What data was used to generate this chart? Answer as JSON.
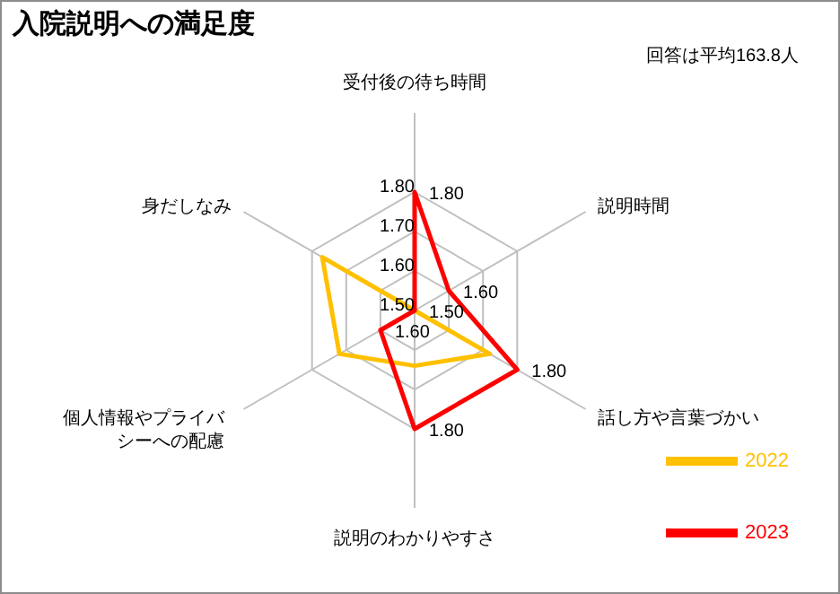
{
  "chart_data": {
    "type": "radar",
    "title": "入院説明への満足度",
    "annotations": [
      "回答は平均163.8人"
    ],
    "categories": [
      "受付後の待ち時間",
      "説明時間",
      "話し方や言葉づかい",
      "説明のわかりやすさ",
      "個人情報やプライバシーへの配慮",
      "身だしなみ"
    ],
    "ylim": [
      1.5,
      1.8
    ],
    "yticks": [
      {
        "value": 1.5,
        "label": "1.50"
      },
      {
        "value": 1.6,
        "label": "1.60"
      },
      {
        "value": 1.7,
        "label": "1.70"
      },
      {
        "value": 1.8,
        "label": "1.80"
      }
    ],
    "grid": true,
    "legend": "bottom right",
    "marker": "none",
    "series": [
      {
        "name": "2022",
        "color": "#ffc000",
        "values": [
          1.5,
          1.5,
          1.72,
          1.64,
          1.72,
          1.77
        ]
      },
      {
        "name": "2023",
        "color": "#ff0000",
        "values": [
          1.8,
          1.6,
          1.8,
          1.8,
          1.6,
          1.5
        ],
        "value_labels": [
          "1.80",
          "1.60",
          "1.80",
          "1.80",
          "1.60",
          "1.50"
        ]
      }
    ]
  }
}
